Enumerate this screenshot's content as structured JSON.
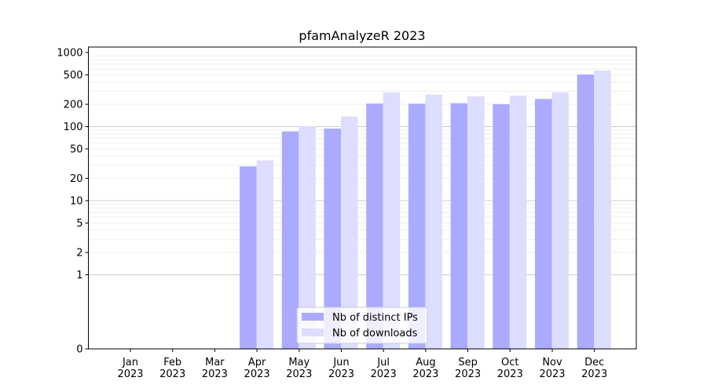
{
  "chart_data": {
    "type": "bar",
    "title": "pfamAnalyzeR 2023",
    "xlabel": "",
    "ylabel": "",
    "yscale": "symlog",
    "ylim": [
      0,
      1000
    ],
    "y_ticks": [
      0,
      1,
      2,
      5,
      10,
      20,
      50,
      100,
      200,
      500,
      1000
    ],
    "y_tick_labels": [
      "0",
      "1",
      "2",
      "5",
      "10",
      "20",
      "50",
      "100",
      "200",
      "500",
      "1000"
    ],
    "categories": [
      "Jan\n2023",
      "Feb\n2023",
      "Mar\n2023",
      "Apr\n2023",
      "May\n2023",
      "Jun\n2023",
      "Jul\n2023",
      "Aug\n2023",
      "Sep\n2023",
      "Oct\n2023",
      "Nov\n2023",
      "Dec\n2023"
    ],
    "series": [
      {
        "name": "Nb of distinct IPs",
        "color": "#aaaaff",
        "values": [
          0,
          0,
          0,
          29,
          86,
          94,
          205,
          204,
          207,
          201,
          236,
          505
        ]
      },
      {
        "name": "Nb of downloads",
        "color": "#ddddff",
        "values": [
          0,
          0,
          0,
          35,
          101,
          137,
          289,
          270,
          257,
          263,
          290,
          571
        ]
      }
    ],
    "legend_position": "lower center",
    "grid": true
  }
}
